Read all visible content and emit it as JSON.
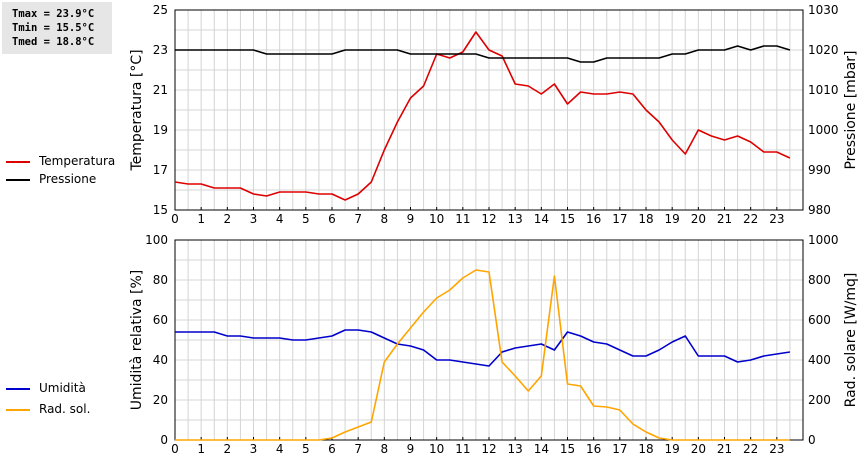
{
  "stats": {
    "tmax": "Tmax = 23.9°C",
    "tmin": "Tmin = 15.5°C",
    "tmed": "Tmed = 18.8°C"
  },
  "colors": {
    "temperature": "#dd0000",
    "pressure": "#000000",
    "humidity": "#0000cc",
    "radiation": "#ffa500",
    "grid": "#d4d4d4",
    "stats_bg": "#e6e6e6"
  },
  "legend": {
    "top": [
      {
        "label": "Temperatura",
        "color": "#dd0000"
      },
      {
        "label": "Pressione",
        "color": "#000000"
      }
    ],
    "bottom": [
      {
        "label": "Umidità",
        "color": "#0000cc"
      },
      {
        "label": "Rad. sol.",
        "color": "#ffa500"
      }
    ]
  },
  "chart_data": [
    {
      "type": "line",
      "ylabel": "Temperatura [°C]",
      "y2label": "Pressione [mbar]",
      "xlim": [
        0,
        24
      ],
      "ylim": [
        15,
        25
      ],
      "y2lim": [
        980,
        1030
      ],
      "xticks": [
        0,
        1,
        2,
        3,
        4,
        5,
        6,
        7,
        8,
        9,
        10,
        11,
        12,
        13,
        14,
        15,
        16,
        17,
        18,
        19,
        20,
        21,
        22,
        23
      ],
      "yticks": [
        15,
        17,
        19,
        21,
        23,
        25
      ],
      "y2ticks": [
        980,
        990,
        1000,
        1010,
        1020,
        1030
      ],
      "grid": true,
      "legend_position": "left",
      "series": [
        {
          "name": "Temperatura",
          "axis": "left",
          "color": "#dd0000",
          "x": [
            0,
            0.5,
            1,
            1.5,
            2,
            2.5,
            3,
            3.5,
            4,
            4.5,
            5,
            5.5,
            6,
            6.5,
            7,
            7.5,
            8,
            8.5,
            9,
            9.5,
            10,
            10.5,
            11,
            11.5,
            12,
            12.5,
            13,
            13.5,
            14,
            14.5,
            15,
            15.5,
            16,
            16.5,
            17,
            17.5,
            18,
            18.5,
            19,
            19.5,
            20,
            20.5,
            21,
            21.5,
            22,
            22.5,
            23,
            23.5
          ],
          "y": [
            16.4,
            16.3,
            16.3,
            16.1,
            16.1,
            16.1,
            15.8,
            15.7,
            15.9,
            15.9,
            15.9,
            15.8,
            15.8,
            15.5,
            15.8,
            16.4,
            18.0,
            19.4,
            20.6,
            21.2,
            22.8,
            22.6,
            22.9,
            23.9,
            23.0,
            22.7,
            21.3,
            21.2,
            20.8,
            21.3,
            20.3,
            20.9,
            20.8,
            20.8,
            20.9,
            20.8,
            20.0,
            19.4,
            18.5,
            17.8,
            19.0,
            18.7,
            18.5,
            18.7,
            18.4,
            17.9,
            17.9,
            17.6
          ]
        },
        {
          "name": "Pressione",
          "axis": "right",
          "color": "#000000",
          "x": [
            0,
            0.5,
            1,
            1.5,
            2,
            2.5,
            3,
            3.5,
            4,
            4.5,
            5,
            5.5,
            6,
            6.5,
            7,
            7.5,
            8,
            8.5,
            9,
            9.5,
            10,
            10.5,
            11,
            11.5,
            12,
            12.5,
            13,
            13.5,
            14,
            14.5,
            15,
            15.5,
            16,
            16.5,
            17,
            17.5,
            18,
            18.5,
            19,
            19.5,
            20,
            20.5,
            21,
            21.5,
            22,
            22.5,
            23,
            23.5
          ],
          "y": [
            1020,
            1020,
            1020,
            1020,
            1020,
            1020,
            1020,
            1019,
            1019,
            1019,
            1019,
            1019,
            1019,
            1020,
            1020,
            1020,
            1020,
            1020,
            1019,
            1019,
            1019,
            1019,
            1019,
            1019,
            1018,
            1018,
            1018,
            1018,
            1018,
            1018,
            1018,
            1017,
            1017,
            1018,
            1018,
            1018,
            1018,
            1018,
            1019,
            1019,
            1020,
            1020,
            1020,
            1021,
            1020,
            1021,
            1021,
            1020
          ]
        }
      ]
    },
    {
      "type": "line",
      "ylabel": "Umidità relativa [%]",
      "y2label": "Rad. solare [W/mq]",
      "xlim": [
        0,
        24
      ],
      "ylim": [
        0,
        100
      ],
      "y2lim": [
        0,
        1000
      ],
      "xticks": [
        0,
        1,
        2,
        3,
        4,
        5,
        6,
        7,
        8,
        9,
        10,
        11,
        12,
        13,
        14,
        15,
        16,
        17,
        18,
        19,
        20,
        21,
        22,
        23
      ],
      "yticks": [
        0,
        20,
        40,
        60,
        80,
        100
      ],
      "y2ticks": [
        0,
        200,
        400,
        600,
        800,
        1000
      ],
      "grid": true,
      "legend_position": "left",
      "series": [
        {
          "name": "Umidità",
          "axis": "left",
          "color": "#0000cc",
          "x": [
            0,
            0.5,
            1,
            1.5,
            2,
            2.5,
            3,
            3.5,
            4,
            4.5,
            5,
            5.5,
            6,
            6.5,
            7,
            7.5,
            8,
            8.5,
            9,
            9.5,
            10,
            10.5,
            11,
            11.5,
            12,
            12.5,
            13,
            13.5,
            14,
            14.5,
            15,
            15.5,
            16,
            16.5,
            17,
            17.5,
            18,
            18.5,
            19,
            19.5,
            20,
            20.5,
            21,
            21.5,
            22,
            22.5,
            23,
            23.5
          ],
          "y": [
            54,
            54,
            54,
            54,
            52,
            52,
            51,
            51,
            51,
            50,
            50,
            51,
            52,
            55,
            55,
            54,
            51,
            48,
            47,
            45,
            40,
            40,
            39,
            38,
            37,
            44,
            46,
            47,
            48,
            45,
            54,
            52,
            49,
            48,
            45,
            42,
            42,
            45,
            49,
            52,
            42,
            42,
            42,
            39,
            40,
            42,
            43,
            44
          ]
        },
        {
          "name": "Rad. sol.",
          "axis": "right",
          "color": "#ffa500",
          "x": [
            0,
            0.5,
            1,
            1.5,
            2,
            2.5,
            3,
            3.5,
            4,
            4.5,
            5,
            5.5,
            6,
            6.5,
            7,
            7.5,
            8,
            8.5,
            9,
            9.5,
            10,
            10.5,
            11,
            11.5,
            12,
            12.5,
            13,
            13.5,
            14,
            14.5,
            15,
            15.5,
            16,
            16.5,
            17,
            17.5,
            18,
            18.5,
            19,
            19.5,
            20,
            20.5,
            21,
            21.5,
            22,
            22.5,
            23,
            23.5
          ],
          "y": [
            0,
            0,
            0,
            0,
            0,
            0,
            0,
            0,
            0,
            0,
            0,
            0,
            10,
            40,
            65,
            90,
            390,
            480,
            560,
            640,
            710,
            750,
            810,
            850,
            840,
            390,
            320,
            245,
            320,
            820,
            280,
            270,
            170,
            165,
            150,
            80,
            40,
            10,
            0,
            0,
            0,
            0,
            0,
            0,
            0,
            0,
            0,
            0
          ]
        }
      ]
    }
  ]
}
